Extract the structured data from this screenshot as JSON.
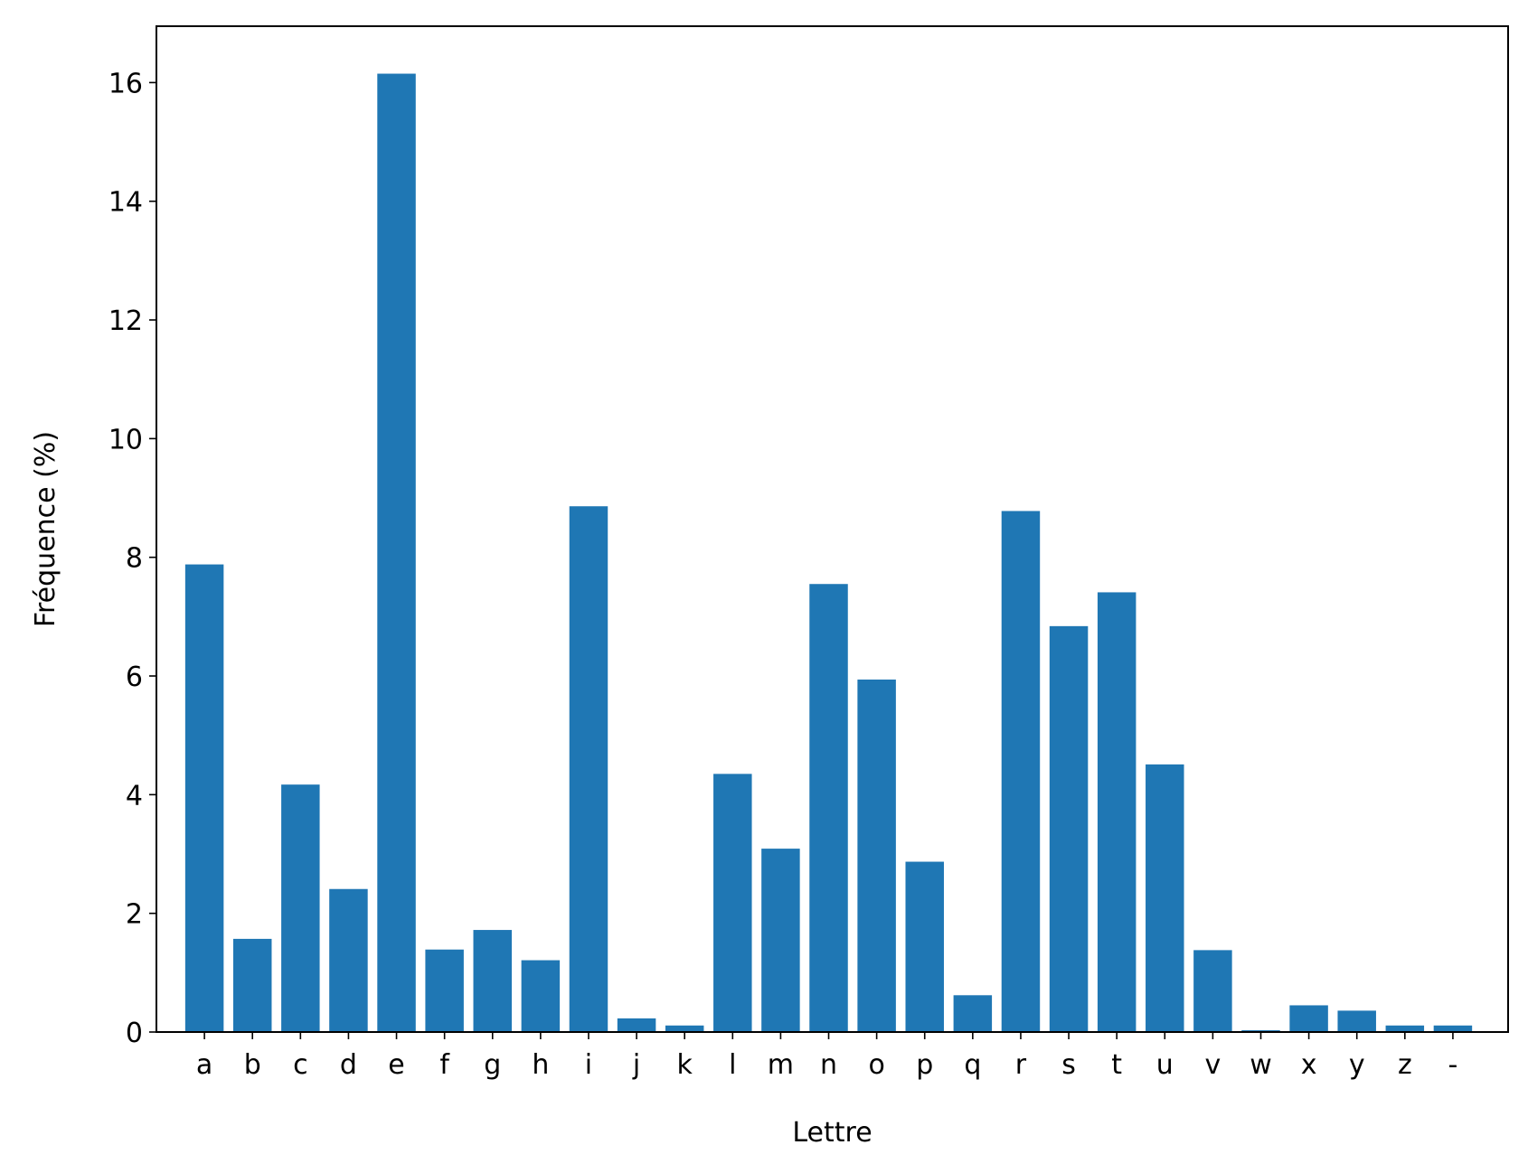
{
  "chart_data": {
    "type": "bar",
    "categories": [
      "a",
      "b",
      "c",
      "d",
      "e",
      "f",
      "g",
      "h",
      "i",
      "j",
      "k",
      "l",
      "m",
      "n",
      "o",
      "p",
      "q",
      "r",
      "s",
      "t",
      "u",
      "v",
      "w",
      "x",
      "y",
      "z",
      "-"
    ],
    "values": [
      7.88,
      1.57,
      4.17,
      2.41,
      16.15,
      1.39,
      1.72,
      1.21,
      8.86,
      0.23,
      0.11,
      4.35,
      3.09,
      7.55,
      5.94,
      2.87,
      0.62,
      8.78,
      6.84,
      7.41,
      4.51,
      1.38,
      0.03,
      0.45,
      0.36,
      0.11,
      0.11
    ],
    "title": "",
    "xlabel": "Lettre",
    "ylabel": "Fréquence (%)",
    "ylim": [
      0,
      16.95
    ],
    "yticks": [
      0,
      2,
      4,
      6,
      8,
      10,
      12,
      14,
      16
    ],
    "bar_color": "#1f77b4",
    "grid": false
  }
}
